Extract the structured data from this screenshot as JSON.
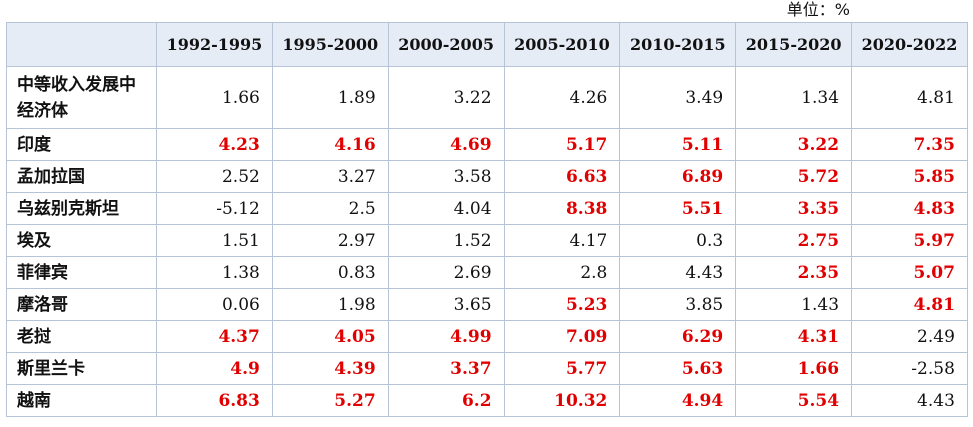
{
  "unit_label": "单位：%",
  "table": {
    "headers": [
      "",
      "1992-1995",
      "1995-2000",
      "2000-2005",
      "2005-2010",
      "2010-2015",
      "2015-2020",
      "2020-2022"
    ],
    "highlight_color": "#e00000",
    "rows": [
      {
        "name": "中等收入发展中经济体",
        "values": [
          "1.66",
          "1.89",
          "3.22",
          "4.26",
          "3.49",
          "1.34",
          "4.81"
        ],
        "highlight": [
          false,
          false,
          false,
          false,
          false,
          false,
          false
        ]
      },
      {
        "name": "印度",
        "values": [
          "4.23",
          "4.16",
          "4.69",
          "5.17",
          "5.11",
          "3.22",
          "7.35"
        ],
        "highlight": [
          true,
          true,
          true,
          true,
          true,
          true,
          true
        ]
      },
      {
        "name": "孟加拉国",
        "values": [
          "2.52",
          "3.27",
          "3.58",
          "6.63",
          "6.89",
          "5.72",
          "5.85"
        ],
        "highlight": [
          false,
          false,
          false,
          true,
          true,
          true,
          true
        ]
      },
      {
        "name": "乌兹别克斯坦",
        "values": [
          "-5.12",
          "2.5",
          "4.04",
          "8.38",
          "5.51",
          "3.35",
          "4.83"
        ],
        "highlight": [
          false,
          false,
          false,
          true,
          true,
          true,
          true
        ]
      },
      {
        "name": "埃及",
        "values": [
          "1.51",
          "2.97",
          "1.52",
          "4.17",
          "0.3",
          "2.75",
          "5.97"
        ],
        "highlight": [
          false,
          false,
          false,
          false,
          false,
          true,
          true
        ]
      },
      {
        "name": "菲律宾",
        "values": [
          "1.38",
          "0.83",
          "2.69",
          "2.8",
          "4.43",
          "2.35",
          "5.07"
        ],
        "highlight": [
          false,
          false,
          false,
          false,
          false,
          true,
          true
        ]
      },
      {
        "name": "摩洛哥",
        "values": [
          "0.06",
          "1.98",
          "3.65",
          "5.23",
          "3.85",
          "1.43",
          "4.81"
        ],
        "highlight": [
          false,
          false,
          false,
          true,
          false,
          false,
          true
        ]
      },
      {
        "name": "老挝",
        "values": [
          "4.37",
          "4.05",
          "4.99",
          "7.09",
          "6.29",
          "4.31",
          "2.49"
        ],
        "highlight": [
          true,
          true,
          true,
          true,
          true,
          true,
          false
        ]
      },
      {
        "name": "斯里兰卡",
        "values": [
          "4.9",
          "4.39",
          "3.37",
          "5.77",
          "5.63",
          "1.66",
          "-2.58"
        ],
        "highlight": [
          true,
          true,
          true,
          true,
          true,
          true,
          false
        ]
      },
      {
        "name": "越南",
        "values": [
          "6.83",
          "5.27",
          "6.2",
          "10.32",
          "4.94",
          "5.54",
          "4.43"
        ],
        "highlight": [
          true,
          true,
          true,
          true,
          true,
          true,
          false
        ]
      }
    ]
  }
}
